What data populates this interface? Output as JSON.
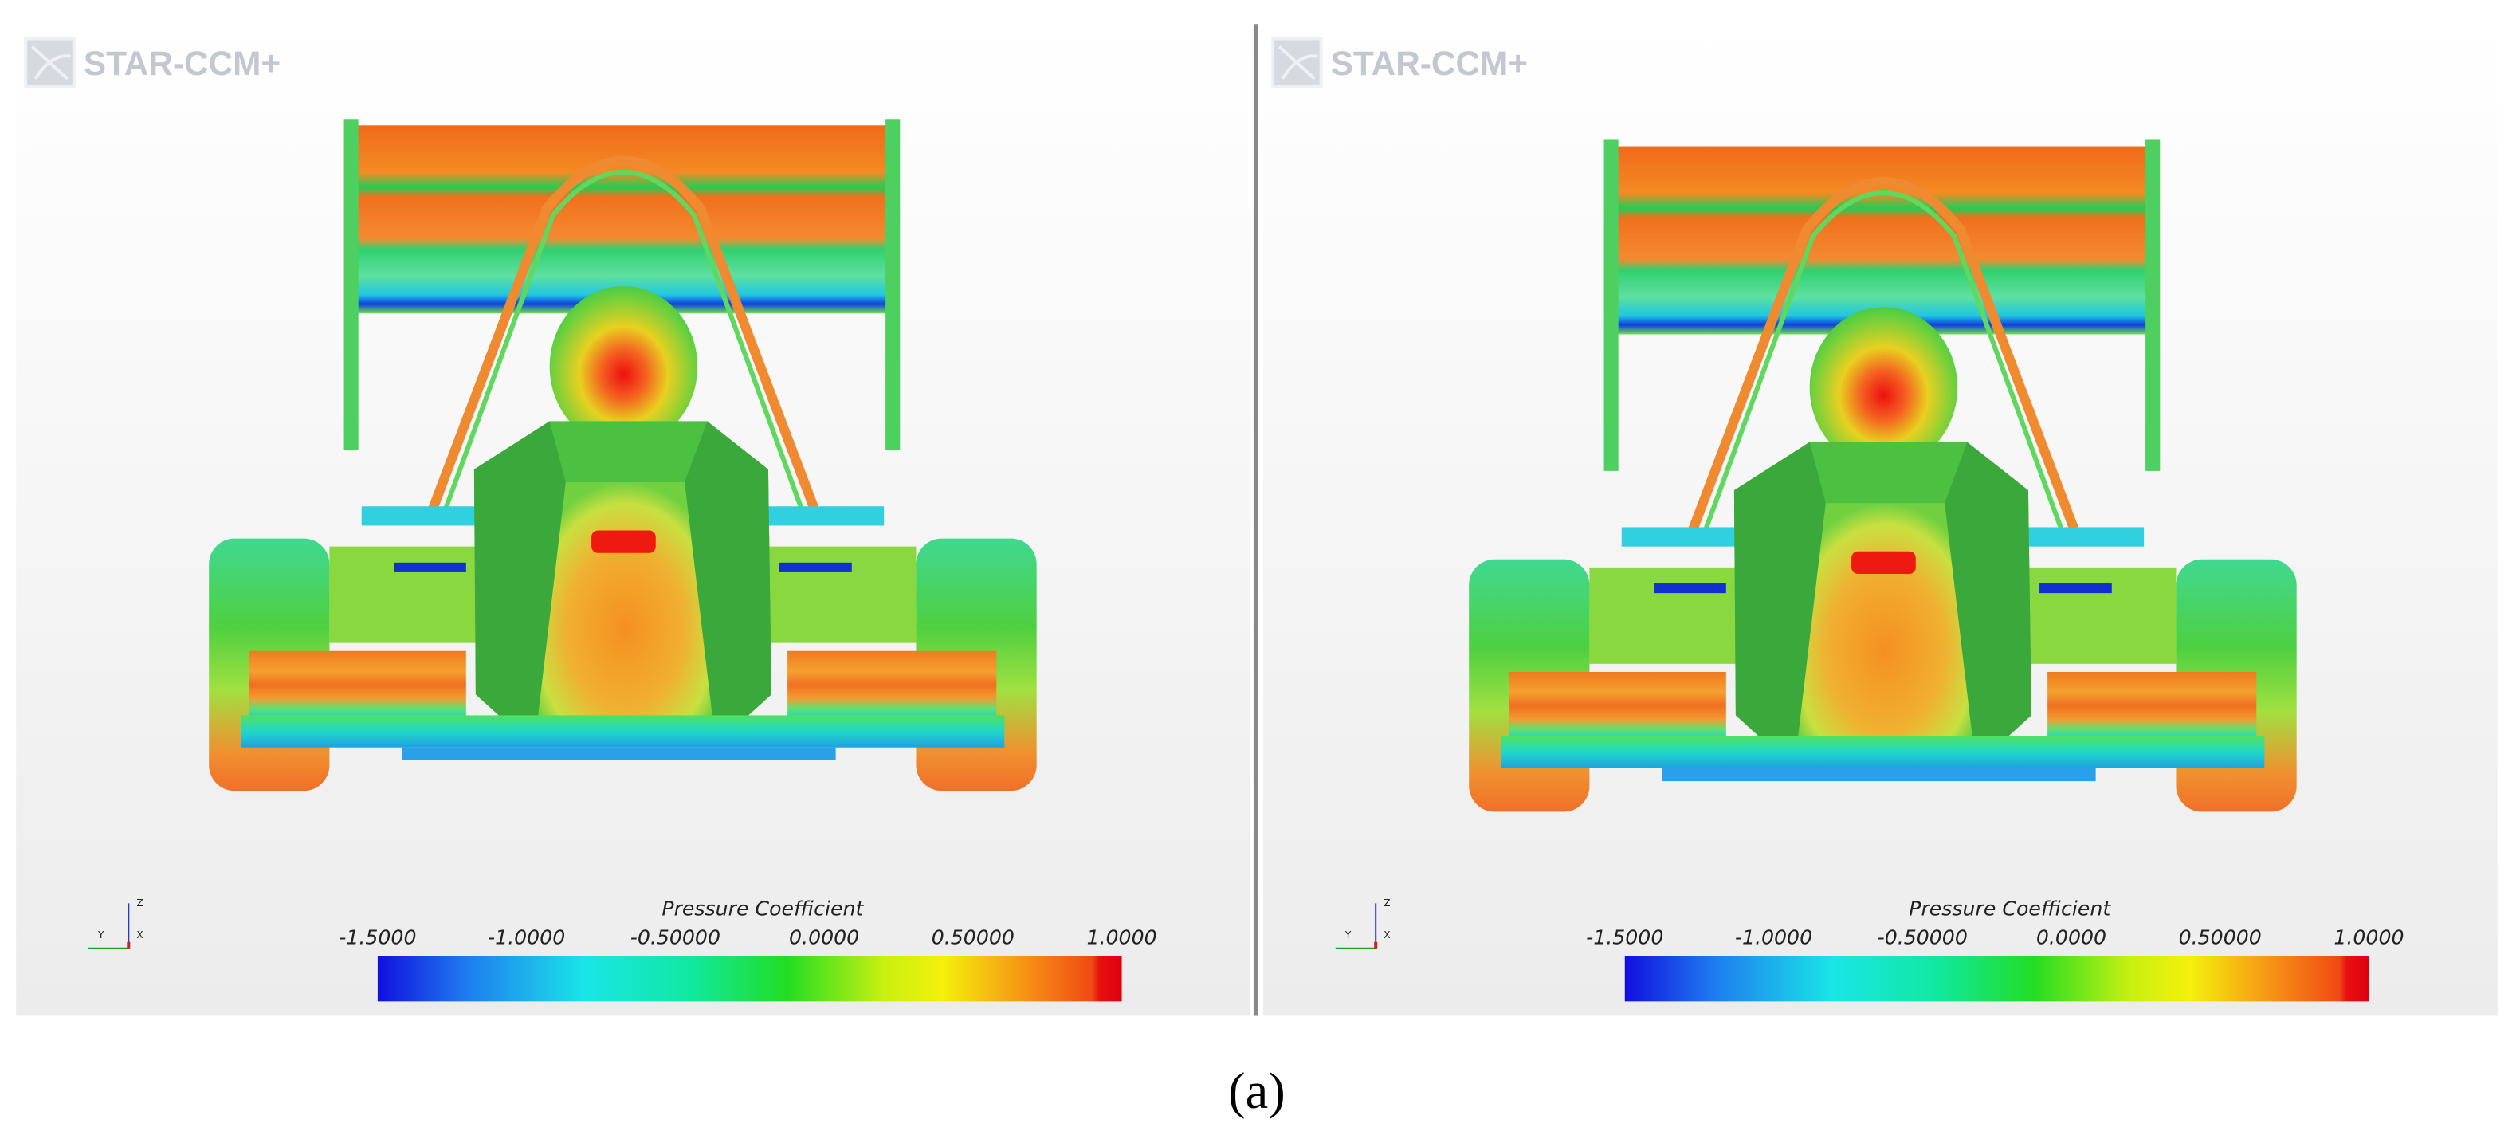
{
  "panels": [
    {
      "logo": "STAR-CCM+",
      "axes": {
        "z": "Z",
        "y": "Y",
        "x": "X"
      },
      "colorbar": {
        "title": "Pressure Coefficient",
        "ticks": [
          "-1.5000",
          "-1.0000",
          "-0.50000",
          "0.0000",
          "0.50000",
          "1.0000"
        ]
      }
    },
    {
      "logo": "STAR-CCM+",
      "axes": {
        "z": "Z",
        "y": "Y",
        "x": "X"
      },
      "colorbar": {
        "title": "Pressure Coefficient",
        "ticks": [
          "-1.5000",
          "-1.0000",
          "-0.50000",
          "0.0000",
          "0.50000",
          "1.0000"
        ]
      }
    }
  ],
  "caption": "(a)"
}
